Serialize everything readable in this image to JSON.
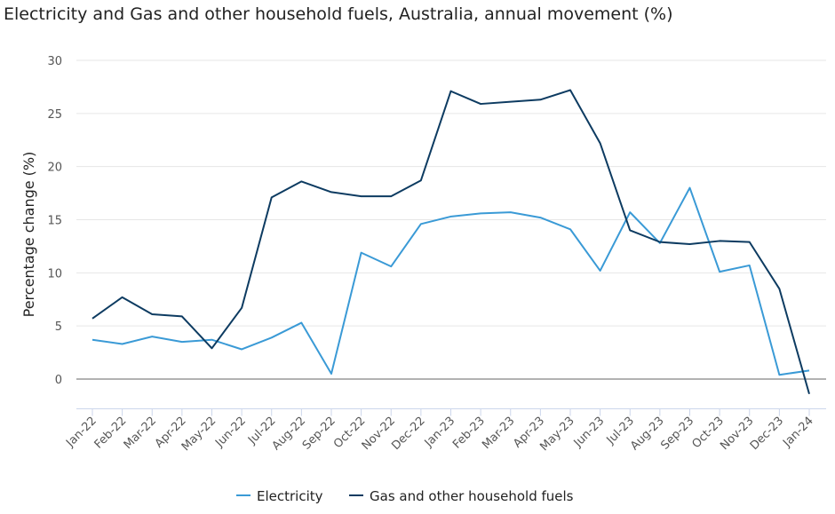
{
  "chart_data": {
    "type": "line",
    "title": "Electricity and Gas and other household fuels, Australia, annual movement (%)",
    "xlabel": "",
    "ylabel": "Percentage change (%)",
    "ylim": [
      -2.8,
      30
    ],
    "yticks": [
      0,
      5,
      10,
      15,
      20,
      25,
      30
    ],
    "grid": true,
    "legend_position": "bottom",
    "categories": [
      "Jan-22",
      "Feb-22",
      "Mar-22",
      "Apr-22",
      "May-22",
      "Jun-22",
      "Jul-22",
      "Aug-22",
      "Sep-22",
      "Oct-22",
      "Nov-22",
      "Dec-22",
      "Jan-23",
      "Feb-23",
      "Mar-23",
      "Apr-23",
      "May-23",
      "Jun-23",
      "Jul-23",
      "Aug-23",
      "Sep-23",
      "Oct-23",
      "Nov-23",
      "Dec-23",
      "Jan-24"
    ],
    "series": [
      {
        "name": "Electricity",
        "color": "#3a9ad6",
        "values": [
          3.7,
          3.3,
          4.0,
          3.5,
          3.7,
          2.8,
          3.9,
          5.3,
          0.5,
          11.9,
          10.6,
          14.6,
          15.3,
          15.6,
          15.7,
          15.2,
          14.1,
          10.2,
          15.7,
          12.8,
          18.0,
          10.1,
          10.7,
          0.4,
          0.8
        ]
      },
      {
        "name": "Gas and other household fuels",
        "color": "#0d3b61",
        "values": [
          5.7,
          7.7,
          6.1,
          5.9,
          2.9,
          6.7,
          17.1,
          18.6,
          17.6,
          17.2,
          17.2,
          18.7,
          27.1,
          25.9,
          26.1,
          26.3,
          27.2,
          22.2,
          14.0,
          12.9,
          12.7,
          13.0,
          12.9,
          8.5,
          -1.4
        ]
      }
    ]
  }
}
